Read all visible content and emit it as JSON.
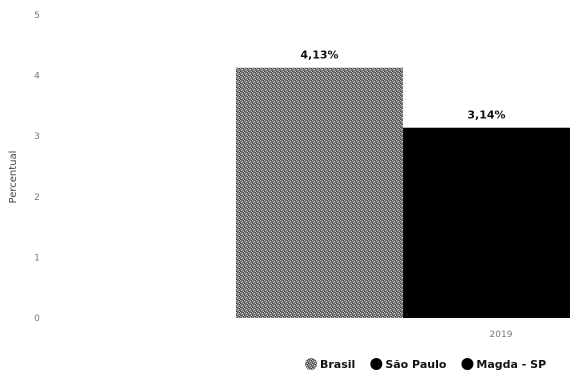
{
  "chart_data": {
    "type": "bar",
    "categories": [
      "2019"
    ],
    "ylabel": "Percentual",
    "ylim": [
      0,
      5
    ],
    "yticks": [
      "0",
      "1",
      "2",
      "3",
      "4",
      "5"
    ],
    "series": [
      {
        "name": "Brasil",
        "values": [
          4.13
        ],
        "label": "4,13%",
        "color": "#777777",
        "pattern": "stipple"
      },
      {
        "name": "São Paulo",
        "values": [
          3.14
        ],
        "label": "3,14%",
        "color": "#000000",
        "pattern": "solid"
      },
      {
        "name": "Magda - SP",
        "values": [
          null
        ],
        "label": "",
        "color": "#000000",
        "pattern": "solid"
      }
    ],
    "legend_position": "bottom-right",
    "grid": false
  }
}
